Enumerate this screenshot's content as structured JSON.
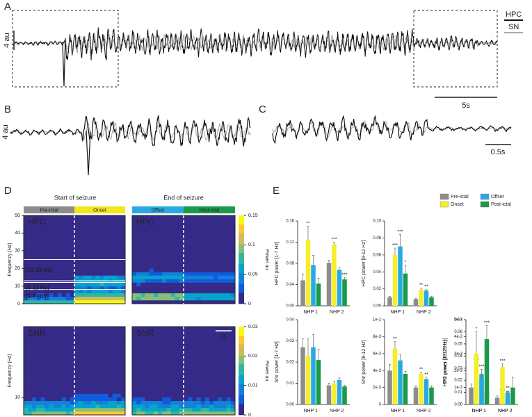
{
  "panel_labels": [
    "A",
    "B",
    "C",
    "D",
    "E"
  ],
  "traces": {
    "legend": [
      "HPC",
      "SN"
    ],
    "amplitude_scale_a": "4 au",
    "time_scale_a": "5s",
    "amplitude_scale_b": "4 au",
    "time_scale_c": "0.5s"
  },
  "spectrograms": {
    "titles": [
      "Start of seizure",
      "End of seizure"
    ],
    "phases": [
      {
        "name": "Pre-Ictal",
        "color": "#8c8c8c"
      },
      {
        "name": "Onset",
        "color": "#f2e61c"
      },
      {
        "name": "Offset",
        "color": "#29a9e1"
      },
      {
        "name": "Post-ictal",
        "color": "#1a9a4a"
      }
    ],
    "ylabel": "Frequency (Hz)",
    "clabel": "Power au",
    "time_scale": "1s",
    "rows": [
      {
        "region_labels": [
          "HPC",
          "HPC"
        ],
        "ylim": [
          0,
          50
        ],
        "yticks": [
          0,
          10,
          20,
          30,
          40,
          50
        ],
        "clim": [
          0,
          0.15
        ],
        "cticks": [
          0,
          0.05,
          0.1,
          0.15
        ],
        "bands": [
          {
            "label": "[13-25 Hz]",
            "range": [
              13,
              25
            ]
          },
          {
            "label": "[8-12 Hz]",
            "range": [
              8,
              12
            ]
          },
          {
            "label": "[1-7 Hz]",
            "range": [
              1,
              7
            ]
          }
        ]
      },
      {
        "region_labels": [
          "SNR",
          "SNR"
        ],
        "ylim": [
          0,
          50
        ],
        "yticks": [
          10
        ],
        "clim": [
          0,
          0.03
        ],
        "cticks": [
          0,
          0.01,
          0.02,
          0.03
        ]
      }
    ]
  },
  "legend": [
    {
      "name": "Pre-ictal",
      "color": "#8c8c8c"
    },
    {
      "name": "Onset",
      "color": "#f5ee2a"
    },
    {
      "name": "Offset",
      "color": "#29a9e1"
    },
    {
      "name": "Post-ictal",
      "color": "#1a9a4a"
    }
  ],
  "chart_data": [
    {
      "type": "bar",
      "ylabel": "HPC power [1-7 Hz]",
      "categories": [
        "NHP 1",
        "NHP 2"
      ],
      "ylim": [
        0,
        0.16
      ],
      "yticks": [
        {
          "value": 0,
          "label": "0.00"
        },
        {
          "value": 0.04,
          "label": "0.04"
        },
        {
          "value": 0.08,
          "label": "0.08"
        },
        {
          "value": 0.12,
          "label": "0.12"
        },
        {
          "value": 0.16,
          "label": "0.16"
        }
      ],
      "series": [
        {
          "values": [
            0.048,
            0.081
          ],
          "errors": [
            0.012,
            0.005
          ],
          "significance": [
            null,
            null
          ]
        },
        {
          "values": [
            0.125,
            0.116
          ],
          "errors": [
            0.025,
            0.004
          ],
          "significance": [
            "**",
            "***"
          ]
        },
        {
          "values": [
            0.077,
            0.068
          ],
          "errors": [
            0.018,
            0.004
          ],
          "significance": [
            null,
            null
          ]
        },
        {
          "values": [
            0.042,
            0.05
          ],
          "errors": [
            0.01,
            0.003
          ],
          "significance": [
            null,
            "***"
          ]
        }
      ]
    },
    {
      "type": "bar",
      "ylabel": "HPC power [8-12 Hz]",
      "categories": [
        "NHP 1",
        "NHP 2"
      ],
      "ylim": [
        0,
        0.1
      ],
      "yticks": [
        {
          "value": 0,
          "label": "0.00"
        },
        {
          "value": 0.02,
          "label": "0.02"
        },
        {
          "value": 0.04,
          "label": "0.04"
        },
        {
          "value": 0.06,
          "label": "0.06"
        },
        {
          "value": 0.08,
          "label": "0.08"
        },
        {
          "value": 0.1,
          "label": "0.10"
        }
      ],
      "series": [
        {
          "values": [
            0.01,
            0.008
          ],
          "errors": [
            0.001,
            0.001
          ],
          "significance": [
            null,
            null
          ]
        },
        {
          "values": [
            0.06,
            0.019
          ],
          "errors": [
            0.008,
            0.002
          ],
          "significance": [
            "***",
            "**"
          ]
        },
        {
          "values": [
            0.07,
            0.018
          ],
          "errors": [
            0.014,
            0.001
          ],
          "significance": [
            "***",
            "**"
          ]
        },
        {
          "values": [
            0.038,
            0.01
          ],
          "errors": [
            0.01,
            0.001
          ],
          "significance": [
            "*",
            null
          ]
        }
      ]
    },
    {
      "type": "bar",
      "ylabel": "HPC power [13-25 Hz]",
      "categories": [
        "NHP 1",
        "NHP 2"
      ],
      "ylim": [
        0,
        0.07
      ],
      "yticks": [
        {
          "value": 0,
          "label": "0.00"
        },
        {
          "value": 0.01,
          "label": "0.01"
        },
        {
          "value": 0.02,
          "label": "0.02"
        },
        {
          "value": 0.03,
          "label": "0.03"
        },
        {
          "value": 0.04,
          "label": "0.04"
        },
        {
          "value": 0.05,
          "label": "0.05"
        },
        {
          "value": 0.06,
          "label": "0.06"
        },
        {
          "value": 0.07,
          "label": "0.07"
        }
      ],
      "series": [
        {
          "values": [
            0.003,
            0.002
          ],
          "errors": [
            0.0005,
            0.0004
          ],
          "significance": [
            null,
            null
          ]
        },
        {
          "values": [
            0.03,
            0.008
          ],
          "errors": [
            0.004,
            0.001
          ],
          "significance": [
            "***",
            "***"
          ]
        },
        {
          "values": [
            0.025,
            0.006
          ],
          "errors": [
            0.004,
            0.001
          ],
          "significance": [
            "***",
            "**"
          ]
        },
        {
          "values": [
            0.054,
            0.003
          ],
          "errors": [
            0.011,
            0.0005
          ],
          "significance": [
            "***",
            null
          ]
        }
      ]
    },
    {
      "type": "bar",
      "ylabel": "SNr power [1-7 Hz]",
      "categories": [
        "NHP 1",
        "NHP 2"
      ],
      "ylim": [
        0,
        0.04
      ],
      "yticks": [
        {
          "value": 0,
          "label": "0.00"
        },
        {
          "value": 0.01,
          "label": "0.01"
        },
        {
          "value": 0.02,
          "label": "0.02"
        },
        {
          "value": 0.03,
          "label": "0.03"
        },
        {
          "value": 0.04,
          "label": "0.04"
        }
      ],
      "series": [
        {
          "values": [
            0.027,
            0.009
          ],
          "errors": [
            0.004,
            0.001
          ],
          "significance": [
            null,
            null
          ]
        },
        {
          "values": [
            0.023,
            0.01
          ],
          "errors": [
            0.008,
            0.001
          ],
          "significance": [
            null,
            null
          ]
        },
        {
          "values": [
            0.027,
            0.0115
          ],
          "errors": [
            0.006,
            0.001
          ],
          "significance": [
            null,
            null
          ]
        },
        {
          "values": [
            0.021,
            0.0085
          ],
          "errors": [
            0.005,
            0.0005
          ],
          "significance": [
            null,
            null
          ]
        }
      ]
    },
    {
      "type": "bar",
      "ylabel": "SNr power [8-12 Hz]",
      "categories": [
        "NHP 1",
        "NHP 2"
      ],
      "ylim": [
        0,
        0.01
      ],
      "yticks": [
        {
          "value": 0,
          "label": "0"
        },
        {
          "value": 0.002,
          "label": "2e-3"
        },
        {
          "value": 0.004,
          "label": "4e-3"
        },
        {
          "value": 0.006,
          "label": "6e-3"
        },
        {
          "value": 0.008,
          "label": "8e-3"
        },
        {
          "value": 0.01,
          "label": "1e-2"
        }
      ],
      "series": [
        {
          "values": [
            0.004,
            0.002
          ],
          "errors": [
            0.0007,
            0.0002
          ],
          "significance": [
            null,
            null
          ]
        },
        {
          "values": [
            0.0066,
            0.0036
          ],
          "errors": [
            0.0008,
            0.0002
          ],
          "significance": [
            "**",
            "**"
          ]
        },
        {
          "values": [
            0.0052,
            0.003
          ],
          "errors": [
            0.0007,
            0.0002
          ],
          "significance": [
            null,
            "**"
          ]
        },
        {
          "values": [
            0.0036,
            0.002
          ],
          "errors": [
            0.0003,
            0.0002
          ],
          "significance": [
            null,
            null
          ]
        }
      ]
    },
    {
      "type": "bar",
      "ylabel": "SNr power [8-12 Hz]",
      "categories": [
        "NHP 1",
        "NHP 2"
      ],
      "ylim": [
        0,
        0.005
      ],
      "yticks": [
        {
          "value": 0,
          "label": "0"
        },
        {
          "value": 0.001,
          "label": "1e-3"
        },
        {
          "value": 0.002,
          "label": "2e-3"
        },
        {
          "value": 0.003,
          "label": "3e-3"
        },
        {
          "value": 0.004,
          "label": "4e-3"
        },
        {
          "value": 0.005,
          "label": "5e-3"
        }
      ],
      "series": [
        {
          "values": [
            0.001,
            0.0004
          ],
          "errors": [
            0.0002,
            0.0001
          ],
          "significance": [
            null,
            null
          ]
        },
        {
          "values": [
            0.003,
            0.0022
          ],
          "errors": [
            0.0013,
            0.0002
          ],
          "significance": [
            "*",
            "***"
          ]
        },
        {
          "values": [
            0.0015,
            0.0007
          ],
          "errors": [
            0.0003,
            0.0001
          ],
          "significance": [
            null,
            "**"
          ]
        },
        {
          "values": [
            0.0008,
            0.001
          ],
          "errors": [
            0.0001,
            0.0006
          ],
          "significance": [
            null,
            null
          ]
        }
      ]
    }
  ]
}
